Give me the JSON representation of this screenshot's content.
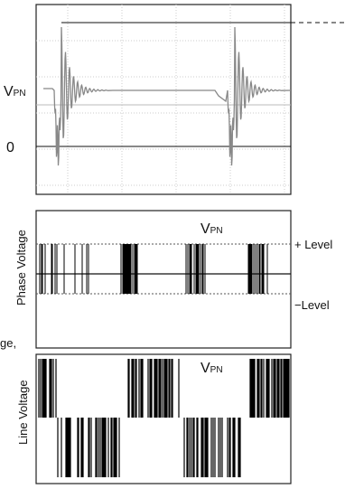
{
  "top_panel": {
    "vpn": {
      "main": "V",
      "sub": "PN"
    },
    "zero": "0"
  },
  "phase_panel": {
    "axis_label": "Phase Voltage",
    "vpn": {
      "main": "V",
      "sub": "PN"
    },
    "plus_level": "+ Level",
    "minus_level": "−Level"
  },
  "side_fragment": "ge,",
  "line_panel": {
    "axis_label": "Line Voltage",
    "vpn": {
      "main": "V",
      "sub": "PN"
    }
  }
}
